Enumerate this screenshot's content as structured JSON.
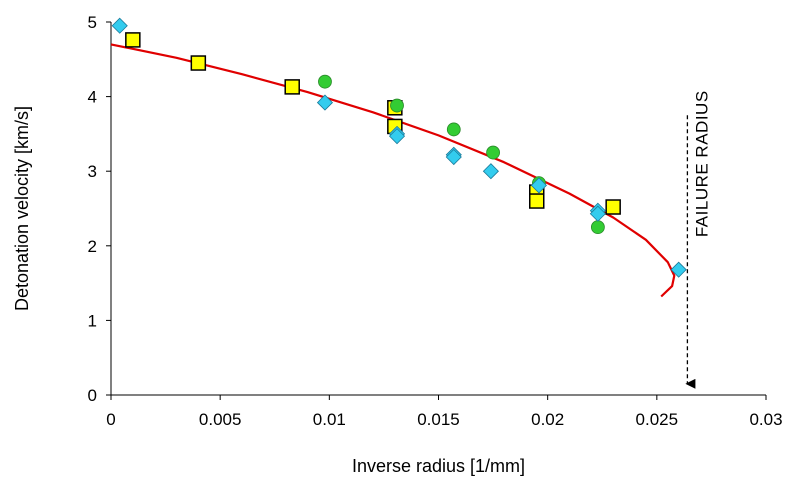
{
  "chart_data": {
    "type": "scatter",
    "xlabel": "Inverse radius [1/mm]",
    "ylabel": "Detonation velocity [km/s]",
    "xlim": [
      0,
      0.03
    ],
    "ylim": [
      0,
      5
    ],
    "x_ticks": [
      "0",
      "0.005",
      "0.01",
      "0.015",
      "0.02",
      "0.025",
      "0.03"
    ],
    "y_ticks": [
      "0",
      "1",
      "2",
      "3",
      "4",
      "5"
    ],
    "grid": false,
    "legend": "none",
    "series": [
      {
        "marker": "square",
        "color": "#ffff00",
        "points": [
          [
            0.001,
            4.76
          ],
          [
            0.004,
            4.45
          ],
          [
            0.0083,
            4.13
          ],
          [
            0.013,
            3.85
          ],
          [
            0.013,
            3.6
          ],
          [
            0.0195,
            2.72
          ],
          [
            0.0195,
            2.6
          ],
          [
            0.023,
            2.52
          ]
        ]
      },
      {
        "marker": "circle",
        "color": "#33cc33",
        "points": [
          [
            0.0098,
            4.2
          ],
          [
            0.0131,
            3.88
          ],
          [
            0.0157,
            3.56
          ],
          [
            0.0175,
            3.25
          ],
          [
            0.0196,
            2.84
          ],
          [
            0.0223,
            2.25
          ]
        ]
      },
      {
        "marker": "diamond",
        "color": "#33ccee",
        "points": [
          [
            0.0004,
            4.95
          ],
          [
            0.0098,
            3.92
          ],
          [
            0.0131,
            3.5
          ],
          [
            0.0131,
            3.47
          ],
          [
            0.0157,
            3.22
          ],
          [
            0.0157,
            3.19
          ],
          [
            0.0174,
            3.0
          ],
          [
            0.0196,
            2.81
          ],
          [
            0.0223,
            2.47
          ],
          [
            0.0223,
            2.43
          ],
          [
            0.026,
            1.68
          ]
        ]
      }
    ],
    "curve": {
      "color": "#e00000",
      "points": [
        [
          0.0,
          4.7
        ],
        [
          0.003,
          4.52
        ],
        [
          0.006,
          4.3
        ],
        [
          0.009,
          4.06
        ],
        [
          0.012,
          3.79
        ],
        [
          0.015,
          3.48
        ],
        [
          0.018,
          3.12
        ],
        [
          0.021,
          2.7
        ],
        [
          0.023,
          2.38
        ],
        [
          0.0245,
          2.08
        ],
        [
          0.0255,
          1.78
        ],
        [
          0.0258,
          1.6
        ],
        [
          0.0257,
          1.46
        ],
        [
          0.0252,
          1.32
        ]
      ]
    },
    "annotation": {
      "text": "FAILURE RADIUS",
      "x": 0.0264,
      "y_from": 3.75,
      "y_to": 0.15
    }
  }
}
